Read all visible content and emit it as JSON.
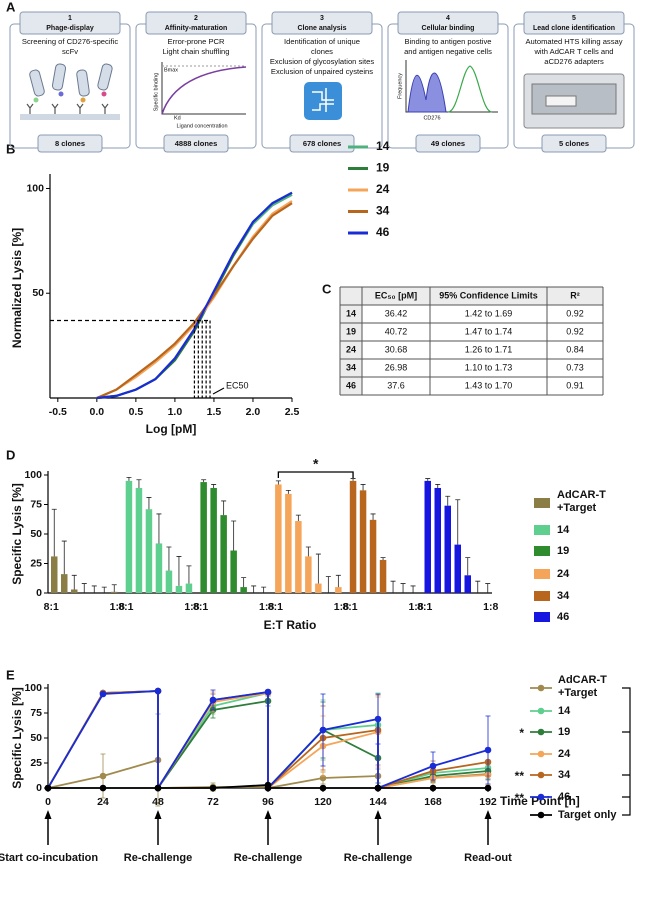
{
  "panel_labels": [
    "A",
    "B",
    "C",
    "D",
    "E"
  ],
  "workflow": {
    "steps": [
      {
        "number": 1,
        "title": "Phage-display",
        "description": [
          "Screening of CD276-specific",
          "scFv"
        ],
        "result": "8 clones"
      },
      {
        "number": 2,
        "title": "Affinity-maturation",
        "description": [
          "Error-prone PCR",
          "Light chain shuffling"
        ],
        "inset_labels": [
          "Bmax",
          "Specific binding",
          "Kd",
          "Ligand concentration"
        ],
        "result": "4888 clones"
      },
      {
        "number": 3,
        "title": "Clone analysis",
        "description": [
          "Identification of unique",
          "clones",
          "Exclusion of glycosylation sites",
          "Exclusion of unpaired cysteins"
        ],
        "result": "678 clones"
      },
      {
        "number": 4,
        "title": "Cellular binding",
        "description": [
          "Binding to antigen postive",
          "and antigen negative cells"
        ],
        "inset_labels": [
          "Frequency",
          "CD276"
        ],
        "result": "49 clones"
      },
      {
        "number": 5,
        "title": "Lead clone identification",
        "description": [
          "Automated HTS killing assay",
          "with AdCAR T cells and",
          "aCD276 adapters"
        ],
        "result": "5 clones"
      }
    ]
  },
  "table": {
    "header": [
      "EC₅₀ [pM]",
      "95% Confidence Limits",
      "R²"
    ],
    "rows": [
      [
        "14",
        "36.42",
        "1.42 to 1.69",
        "0.92"
      ],
      [
        "19",
        "40.72",
        "1.47 to 1.74",
        "0.92"
      ],
      [
        "24",
        "30.68",
        "1.26 to 1.71",
        "0.84"
      ],
      [
        "34",
        "26.98",
        "1.10 to 1.73",
        "0.73"
      ],
      [
        "46",
        "37.6",
        "1.43 to 1.70",
        "0.91"
      ]
    ]
  },
  "chart_data": [
    {
      "type": "line",
      "x_label": "Log [pM]",
      "y_label": "Normalized Lysis [%]",
      "x": [
        0,
        0.25,
        0.5,
        0.75,
        1,
        1.25,
        1.5,
        1.75,
        2,
        2.25,
        2.5
      ],
      "series": [
        {
          "name": "14",
          "color": "#4fb27e",
          "values": [
            0,
            1,
            4,
            9,
            18,
            32,
            50,
            68,
            83,
            92,
            97
          ]
        },
        {
          "name": "19",
          "color": "#2e7d3a",
          "values": [
            0,
            1,
            4,
            9,
            18,
            32,
            50,
            68,
            84,
            93,
            98
          ]
        },
        {
          "name": "24",
          "color": "#f5a55a",
          "values": [
            0,
            4,
            10,
            17,
            25,
            35,
            48,
            63,
            77,
            88,
            94
          ]
        },
        {
          "name": "34",
          "color": "#b8651e",
          "values": [
            0,
            4,
            11,
            18,
            26,
            36,
            49,
            63,
            76,
            87,
            93
          ]
        },
        {
          "name": "46",
          "color": "#1a2cd6",
          "values": [
            0,
            1,
            4,
            9,
            19,
            33,
            51,
            69,
            84,
            93,
            98
          ]
        }
      ],
      "xlim": [
        -0.6,
        2.5
      ],
      "xticks": [
        -0.5,
        {
          "value": 0,
          "label": "0.0"
        },
        0.5,
        {
          "value": 1,
          "label": "1.0"
        },
        1.5,
        {
          "value": 2,
          "label": "2.0"
        },
        2.5
      ],
      "ylim": [
        0,
        105
      ],
      "yticks": [
        50,
        100
      ],
      "ec50_level": 37,
      "ec50_x": [
        1.25,
        1.3,
        1.35,
        1.4,
        1.45
      ],
      "annotation": "EC50",
      "legend": "right"
    },
    {
      "type": "bar",
      "x_label": "E:T Ratio",
      "y_label": "Specific Lysis [%]",
      "categories": [
        "8:1",
        null,
        null,
        null,
        null,
        null,
        "1:8"
      ],
      "series": [
        {
          "name": "AdCAR-T +Target",
          "color": "#8b7d46",
          "values": [
            31,
            16,
            3,
            0,
            0,
            0,
            1
          ],
          "errors": [
            40,
            28,
            12,
            8,
            6,
            5,
            6
          ]
        },
        {
          "name": "14",
          "color": "#5fcf8f",
          "values": [
            95,
            89,
            71,
            42,
            19,
            6,
            8
          ],
          "errors": [
            3,
            7,
            10,
            25,
            20,
            25,
            15
          ]
        },
        {
          "name": "19",
          "color": "#2e8b2e",
          "values": [
            94,
            89,
            66,
            36,
            5,
            0,
            0
          ],
          "errors": [
            2,
            3,
            12,
            25,
            8,
            6,
            5
          ]
        },
        {
          "name": "24",
          "color": "#f5a55a",
          "values": [
            92,
            84,
            61,
            31,
            8,
            0,
            5
          ],
          "errors": [
            3,
            3,
            5,
            8,
            25,
            14,
            10
          ]
        },
        {
          "name": "34",
          "color": "#b8651e",
          "values": [
            95,
            87,
            62,
            28,
            0,
            0,
            0
          ],
          "errors": [
            2,
            5,
            5,
            2,
            10,
            8,
            6
          ]
        },
        {
          "name": "46",
          "color": "#1616e0",
          "values": [
            95,
            89,
            74,
            41,
            15,
            0,
            0
          ],
          "errors": [
            2,
            3,
            8,
            38,
            15,
            10,
            8
          ]
        }
      ],
      "ylim": [
        0,
        100
      ],
      "yticks": [
        0,
        25,
        50,
        75,
        100
      ],
      "significance": "*",
      "legend": "right"
    },
    {
      "type": "line",
      "x_label": "Time Point [h]",
      "y_label": "Specific Lysis [%]",
      "x": [
        0,
        24,
        48,
        48,
        72,
        96,
        96,
        120,
        144,
        144,
        168,
        192
      ],
      "series": [
        {
          "name": "AdCAR-T +Target",
          "color": "#a08a4e",
          "values": [
            0,
            12,
            28,
            0,
            1,
            1,
            0,
            10,
            12,
            0,
            10,
            14
          ],
          "errors": [
            0,
            22,
            46,
            0,
            4,
            2,
            0,
            6,
            7,
            0,
            5,
            6
          ]
        },
        {
          "name": "14",
          "color": "#5fcf8f",
          "values": [
            0,
            95,
            97,
            0,
            82,
            95,
            0,
            58,
            63,
            0,
            15,
            20
          ],
          "errors": [
            0,
            1,
            1,
            0,
            8,
            2,
            0,
            30,
            32,
            0,
            5,
            6
          ]
        },
        {
          "name": "19",
          "color": "#2e7d3a",
          "values": [
            0,
            95,
            97,
            0,
            78,
            87,
            0,
            58,
            30,
            0,
            12,
            17
          ],
          "errors": [
            0,
            1,
            1,
            0,
            8,
            5,
            0,
            28,
            25,
            0,
            6,
            8
          ],
          "significance": "*"
        },
        {
          "name": "24",
          "color": "#f5a55a",
          "values": [
            0,
            95,
            97,
            0,
            86,
            95,
            0,
            42,
            56,
            0,
            10,
            13
          ],
          "errors": [
            0,
            1,
            1,
            0,
            10,
            2,
            0,
            30,
            35,
            0,
            8,
            10
          ]
        },
        {
          "name": "34",
          "color": "#b8651e",
          "values": [
            0,
            95,
            97,
            0,
            88,
            96,
            0,
            50,
            58,
            0,
            17,
            26
          ],
          "errors": [
            0,
            1,
            1,
            0,
            6,
            2,
            0,
            32,
            35,
            0,
            10,
            14
          ],
          "significance": "**"
        },
        {
          "name": "46",
          "color": "#1a2cd6",
          "values": [
            0,
            94,
            97,
            0,
            88,
            96,
            0,
            58,
            69,
            0,
            22,
            38
          ],
          "errors": [
            0,
            1,
            1,
            0,
            10,
            2,
            0,
            36,
            25,
            0,
            14,
            34
          ],
          "significance": "**"
        },
        {
          "name": "Target only",
          "color": "#000000",
          "values": [
            0,
            0,
            0,
            0,
            0,
            3,
            0,
            0,
            0,
            0,
            0,
            0
          ]
        }
      ],
      "xlim": [
        0,
        192
      ],
      "xticks": [
        0,
        24,
        48,
        72,
        96,
        120,
        144,
        168,
        192
      ],
      "ylim": [
        0,
        100
      ],
      "yticks": [
        0,
        25,
        50,
        75,
        100
      ],
      "annotations": [
        {
          "x": 0,
          "label": "Start co-incubation"
        },
        {
          "x": 48,
          "label": "Re-challenge"
        },
        {
          "x": 96,
          "label": "Re-challenge"
        },
        {
          "x": 144,
          "label": "Re-challenge"
        },
        {
          "x": 192,
          "label": "Read-out"
        }
      ],
      "legend": "right"
    }
  ]
}
